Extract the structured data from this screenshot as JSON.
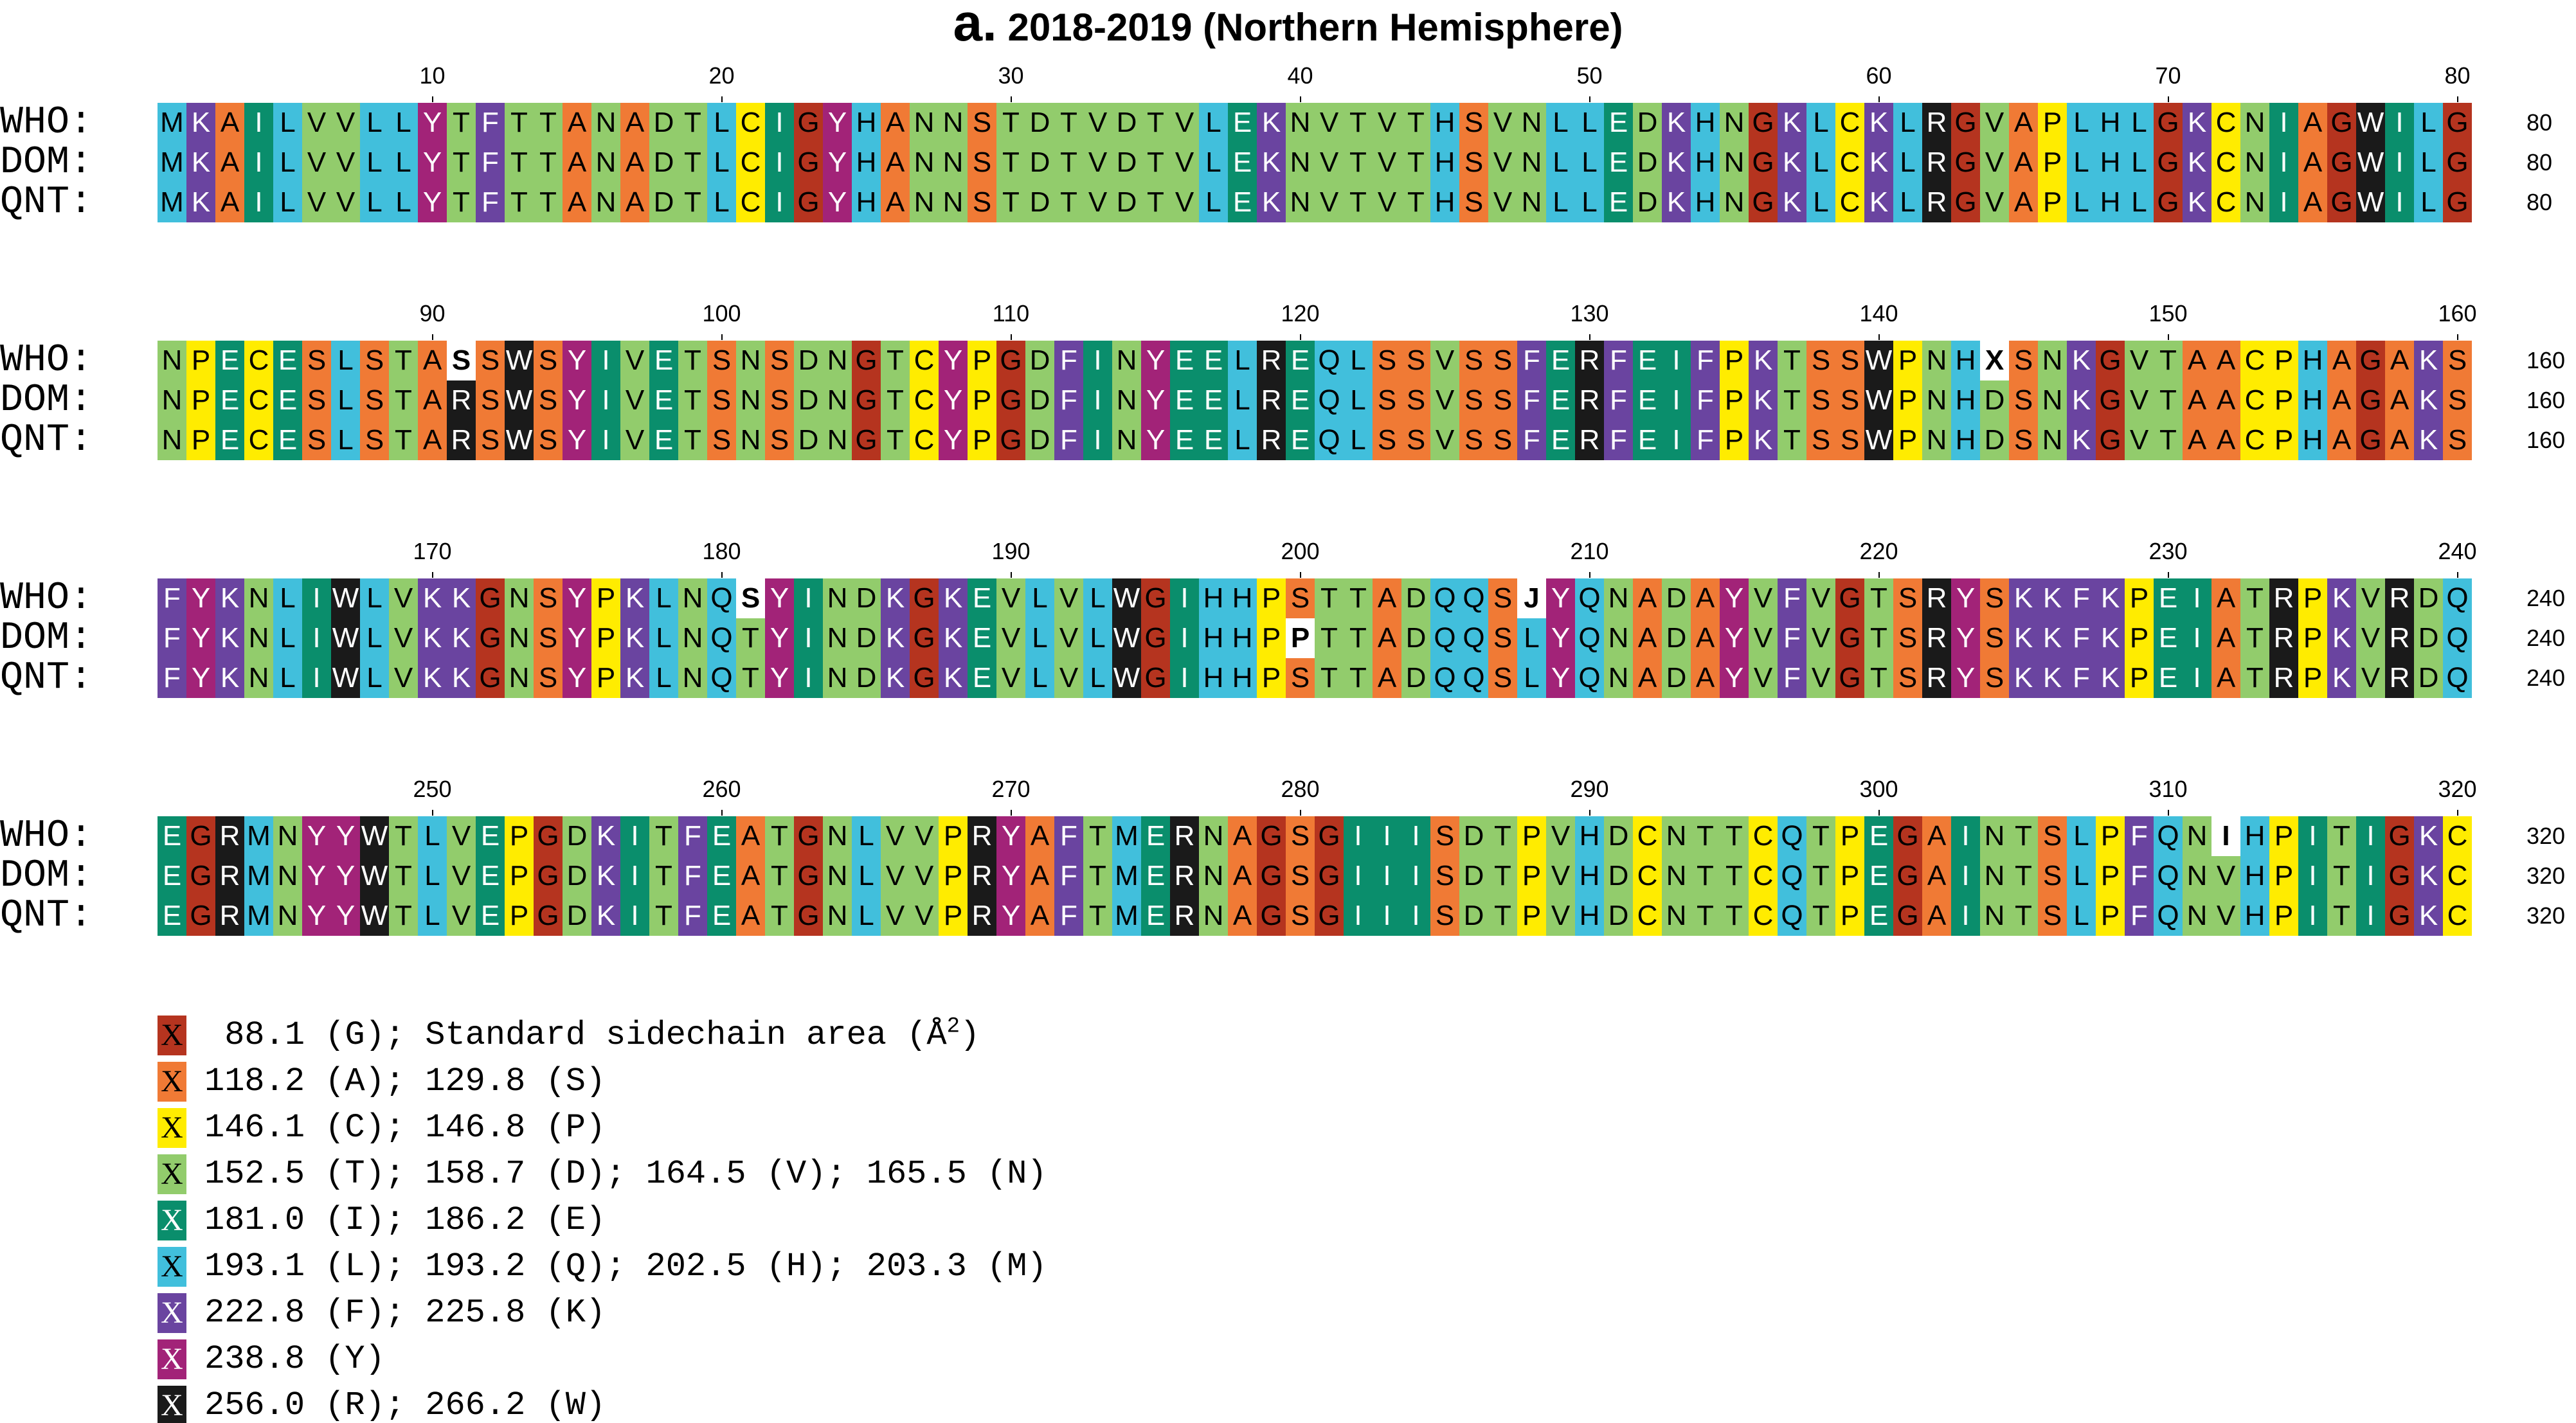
{
  "title": {
    "panel": "a.",
    "text": "2018-2019 (Northern Hemisphere)"
  },
  "row_labels": [
    "WHO:",
    "DOM:",
    "QNT:"
  ],
  "blocks": [
    {
      "start": 1,
      "end": 80,
      "who": "MKAILVVLLYTFTTANADTLCIGYHANNSTDTVDTVLEKNVTVTHSVNLLEDKHNGKLCKLRGVAPLHLGKCNIAGWILG",
      "dom": "MKAILVVLLYTFTTANADTLCIGYHANNSTDTVDTVLEKNVTVTHSVNLLEDKHNGKLCKLRGVAPLHLGKCNIAGWILG",
      "qnt": "MKAILVVLLYTFTTANADTLCIGYHANNSTDTVDTVLEKNVTVTHSVNLLEDKHNGKLCKLRGVAPLHLGKCNIAGWILG"
    },
    {
      "start": 81,
      "end": 160,
      "who": "NPECESLSTASSWSYIVETSNSDNGTCYPGDFINYEELREQLSSVSSFERFEIFPKTSSWPNHXSNKGVTAACPHAGAKS",
      "dom": "NPECESLSTARSWSYIVETSNSDNGTCYPGDFINYEELREQLSSVSSFERFEIFPKTSSWPNHDSNKGVTAACPHAGAKS",
      "qnt": "NPECESLSTARSWSYIVETSNSDNGTCYPGDFINYEELREQLSSVSSFERFEIFPKTSSWPNHDSNKGVTAACPHAGAKS"
    },
    {
      "start": 161,
      "end": 240,
      "who": "FYKNLIWLVKKGNSYPKLNQSYINDKGKEVLVLWGIHHPSTTADQQSJYQNADAYVFVGTSRYSKKFKPEIATRPKVRDQ",
      "dom": "FYKNLIWLVKKGNSYPKLNQTYINDKGKEVLVLWGIHHPPTTADQQSLYQNADAYVFVGTSRYSKKFKPEIATRPKVRDQ",
      "qnt": "FYKNLIWLVKKGNSYPKLNQTYINDKGKEVLVLWGIHHPSTTADQQSLYQNADAYVFVGTSRYSKKFKPEIATRPKVRDQ"
    },
    {
      "start": 241,
      "end": 320,
      "who": "EGRMNYYWTLVEPGDKITFEATGNLVVPRYAFTMERNAGSGIIISDTPVHDCNTTCQTPEGAINTSLPFQNIHPITIGKC",
      "dom": "EGRMNYYWTLVEPGDKITFEATGNLVVPRYAFTMERNAGSGIIISDTPVHDCNTTCQTPEGAINTSLPFQNVHPITIGKC",
      "qnt": "EGRMNYYWTLVEPGDKITFEATGNLVVPRYAFTMERNAGSGIIISDTPVHDCNTTCQTPEGAINTSLPFQNVHPITIGKC"
    }
  ],
  "tick_labels": [
    [
      "10",
      "20",
      "30",
      "40",
      "50",
      "60",
      "70",
      "80"
    ],
    [
      "90",
      "100",
      "110",
      "120",
      "130",
      "140",
      "150",
      "160"
    ],
    [
      "170",
      "180",
      "190",
      "200",
      "210",
      "220",
      "230",
      "240"
    ],
    [
      "250",
      "260",
      "270",
      "280",
      "290",
      "300",
      "310",
      "320"
    ]
  ],
  "end_numbers": [
    "80",
    "160",
    "240",
    "320"
  ],
  "legend": [
    {
      "swatch_label": "X",
      "color": "#b5341f",
      "text_color": "#000000",
      "text": " 88.1 (G); Standard sidechain area (Å",
      "superscript": "2",
      "suffix": ")"
    },
    {
      "swatch_label": "X",
      "color": "#f07a35",
      "text_color": "#000000",
      "text": "118.2 (A); 129.8 (S)"
    },
    {
      "swatch_label": "X",
      "color": "#ffec00",
      "text_color": "#000000",
      "text": "146.1 (C); 146.8 (P)"
    },
    {
      "swatch_label": "X",
      "color": "#92cc6c",
      "text_color": "#000000",
      "text": "152.5 (T); 158.7 (D); 164.5 (V); 165.5 (N)"
    },
    {
      "swatch_label": "X",
      "color": "#0a8e6c",
      "text_color": "#ffffff",
      "text": "181.0 (I); 186.2 (E)"
    },
    {
      "swatch_label": "X",
      "color": "#41bfdc",
      "text_color": "#000000",
      "text": "193.1 (L); 193.2 (Q); 202.5 (H); 203.3 (M)"
    },
    {
      "swatch_label": "X",
      "color": "#6a44a0",
      "text_color": "#ffffff",
      "text": "222.8 (F); 225.8 (K)"
    },
    {
      "swatch_label": "X",
      "color": "#a22378",
      "text_color": "#ffffff",
      "text": "238.8 (Y)"
    },
    {
      "swatch_label": "X",
      "color": "#1a1a1a",
      "text_color": "#ffffff",
      "text": "256.0 (R); 266.2 (W)"
    }
  ],
  "residue_colors": {
    "G": "#b5341f",
    "A": "#f07a35",
    "S": "#f07a35",
    "C": "#ffec00",
    "P": "#ffec00",
    "T": "#92cc6c",
    "D": "#92cc6c",
    "V": "#92cc6c",
    "N": "#92cc6c",
    "I": "#0a8e6c",
    "E": "#0a8e6c",
    "L": "#41bfdc",
    "Q": "#41bfdc",
    "H": "#41bfdc",
    "M": "#41bfdc",
    "F": "#6a44a0",
    "K": "#6a44a0",
    "Y": "#a22378",
    "R": "#1a1a1a",
    "W": "#1a1a1a"
  },
  "light_text_residues": [
    "I",
    "E",
    "F",
    "K",
    "Y",
    "R",
    "W",
    "G"
  ],
  "mismatch_color": "#ffffff"
}
